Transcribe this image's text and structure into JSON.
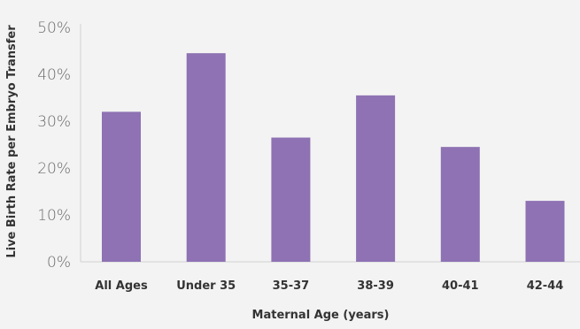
{
  "chart_data": {
    "type": "bar",
    "categories": [
      "All Ages",
      "Under 35",
      "35-37",
      "38-39",
      "40-41",
      "42-44"
    ],
    "values": [
      32,
      44.5,
      26.5,
      35.5,
      24.5,
      13
    ],
    "xlabel": "Maternal Age (years)",
    "ylabel": "Live Birth Rate per Embryo Transfer",
    "ylim": [
      0,
      50
    ],
    "yticks": [
      "0%",
      "10%",
      "20%",
      "30%",
      "40%",
      "50%"
    ],
    "grid": false,
    "legend": "none",
    "bar_color": "#8e72b3"
  }
}
